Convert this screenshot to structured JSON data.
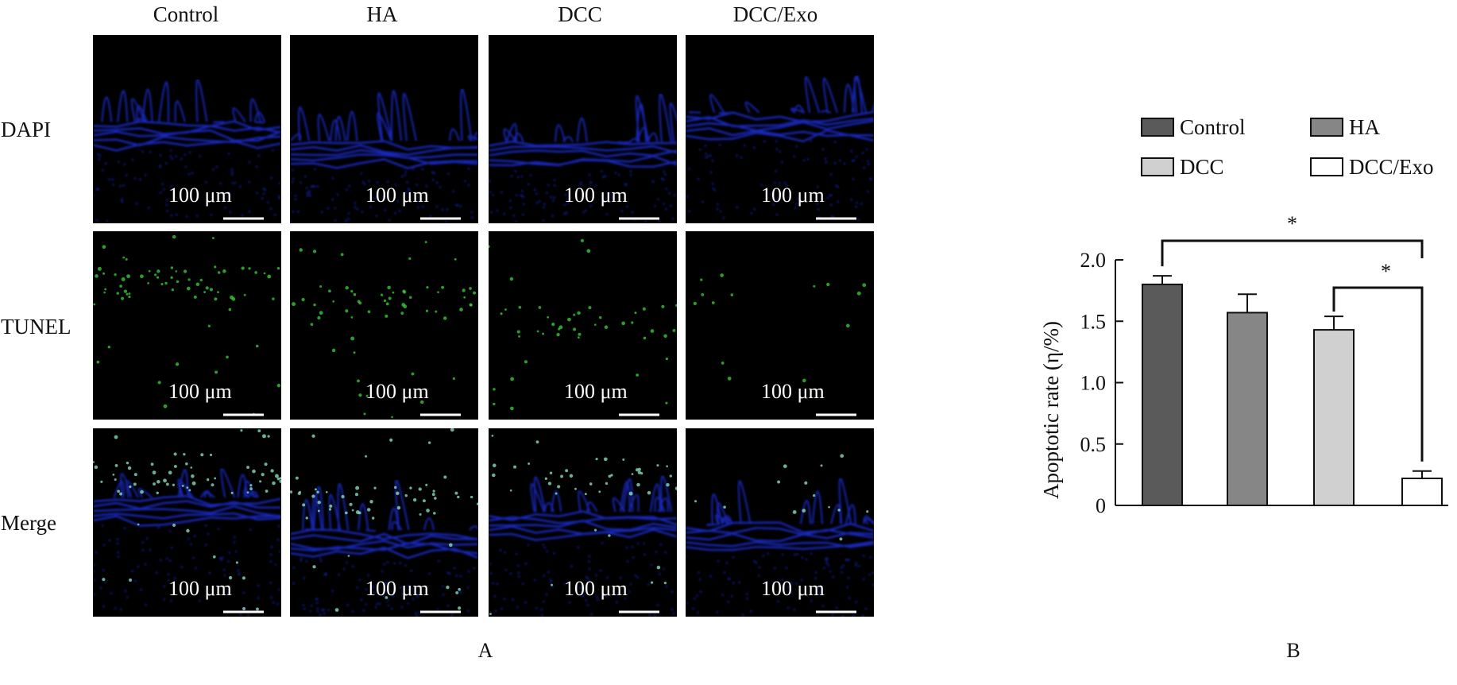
{
  "panel_a": {
    "label": "A",
    "columns": [
      "Control",
      "HA",
      "DCC",
      "DCC/Exo"
    ],
    "rows": [
      "DAPI",
      "TUNEL",
      "Merge"
    ],
    "scale_bar_text": "100 μm",
    "stain_colors": {
      "dapi": "#1f2fd8",
      "tunel": "#3ad13a",
      "background": "#000000"
    }
  },
  "panel_b": {
    "label": "B",
    "significance": [
      "*",
      "*"
    ]
  },
  "chart_data": {
    "type": "bar",
    "categories": [
      "Control",
      "HA",
      "DCC",
      "DCC/Exo"
    ],
    "series": [
      {
        "name": "Control",
        "value": 1.8,
        "error": 0.07,
        "color": "#5a5a5a"
      },
      {
        "name": "HA",
        "value": 1.57,
        "error": 0.15,
        "color": "#868686"
      },
      {
        "name": "DCC",
        "value": 1.43,
        "error": 0.11,
        "color": "#d0d0d0"
      },
      {
        "name": "DCC/Exo",
        "value": 0.22,
        "error": 0.06,
        "color": "#ffffff"
      }
    ],
    "ylabel": "Apoptotic rate (η/%)",
    "ylim": [
      0,
      2.0
    ],
    "yticks": [
      "0",
      "0.5",
      "1.0",
      "1.5",
      "2.0"
    ],
    "legend_position": "top",
    "grid": false
  }
}
